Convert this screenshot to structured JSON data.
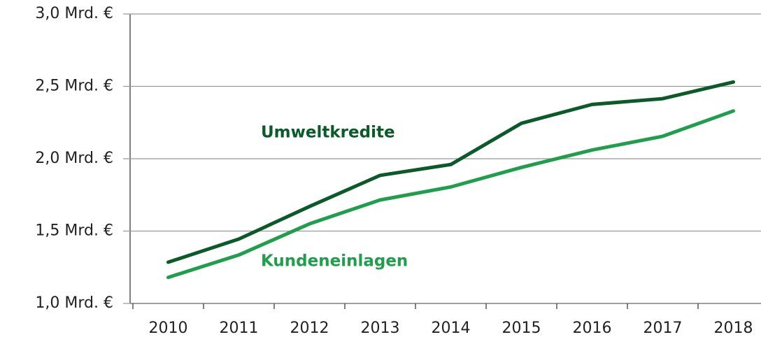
{
  "chart_data": {
    "type": "line",
    "categories": [
      "2010",
      "2011",
      "2012",
      "2013",
      "2014",
      "2015",
      "2016",
      "2017",
      "2018"
    ],
    "series": [
      {
        "name": "Umweltkredite",
        "color": "#0b5a2a",
        "values": [
          1.285,
          1.445,
          1.67,
          1.885,
          1.96,
          2.245,
          2.375,
          2.415,
          2.53
        ]
      },
      {
        "name": "Kundeneinlagen",
        "color": "#1f9e4c",
        "values": [
          1.18,
          1.335,
          1.55,
          1.715,
          1.805,
          1.94,
          2.06,
          2.155,
          2.33
        ]
      }
    ],
    "ylim": [
      1.0,
      3.0
    ],
    "yticks": [
      {
        "value": 1.0,
        "label": "1,0 Mrd. €"
      },
      {
        "value": 1.5,
        "label": "1,5 Mrd. €"
      },
      {
        "value": 2.0,
        "label": "2,0 Mrd. €"
      },
      {
        "value": 2.5,
        "label": "2,5 Mrd. €"
      },
      {
        "value": 3.0,
        "label": "3,0 Mrd. €"
      }
    ],
    "grid": true
  }
}
